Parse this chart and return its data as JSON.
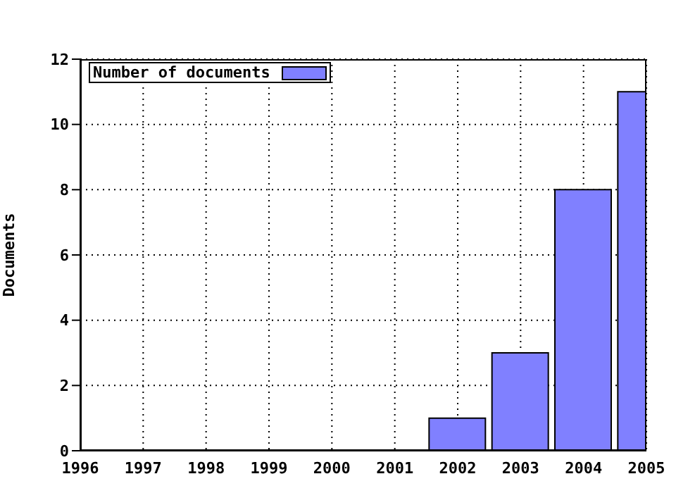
{
  "chart_data": {
    "type": "bar",
    "ylabel": "Documents",
    "x": [
      2002,
      2003,
      2004,
      2005
    ],
    "series": [
      {
        "name": "Number of documents",
        "color": "#8080ff",
        "values": [
          1,
          3,
          8,
          11
        ]
      }
    ],
    "xlim": [
      1996,
      2005
    ],
    "xticks": [
      1996,
      1997,
      1998,
      1999,
      2000,
      2001,
      2002,
      2003,
      2004,
      2005
    ],
    "ylim": [
      0,
      12
    ],
    "yticks": [
      0,
      2,
      4,
      6,
      8,
      10,
      12
    ],
    "grid": true,
    "legend": "top left"
  }
}
